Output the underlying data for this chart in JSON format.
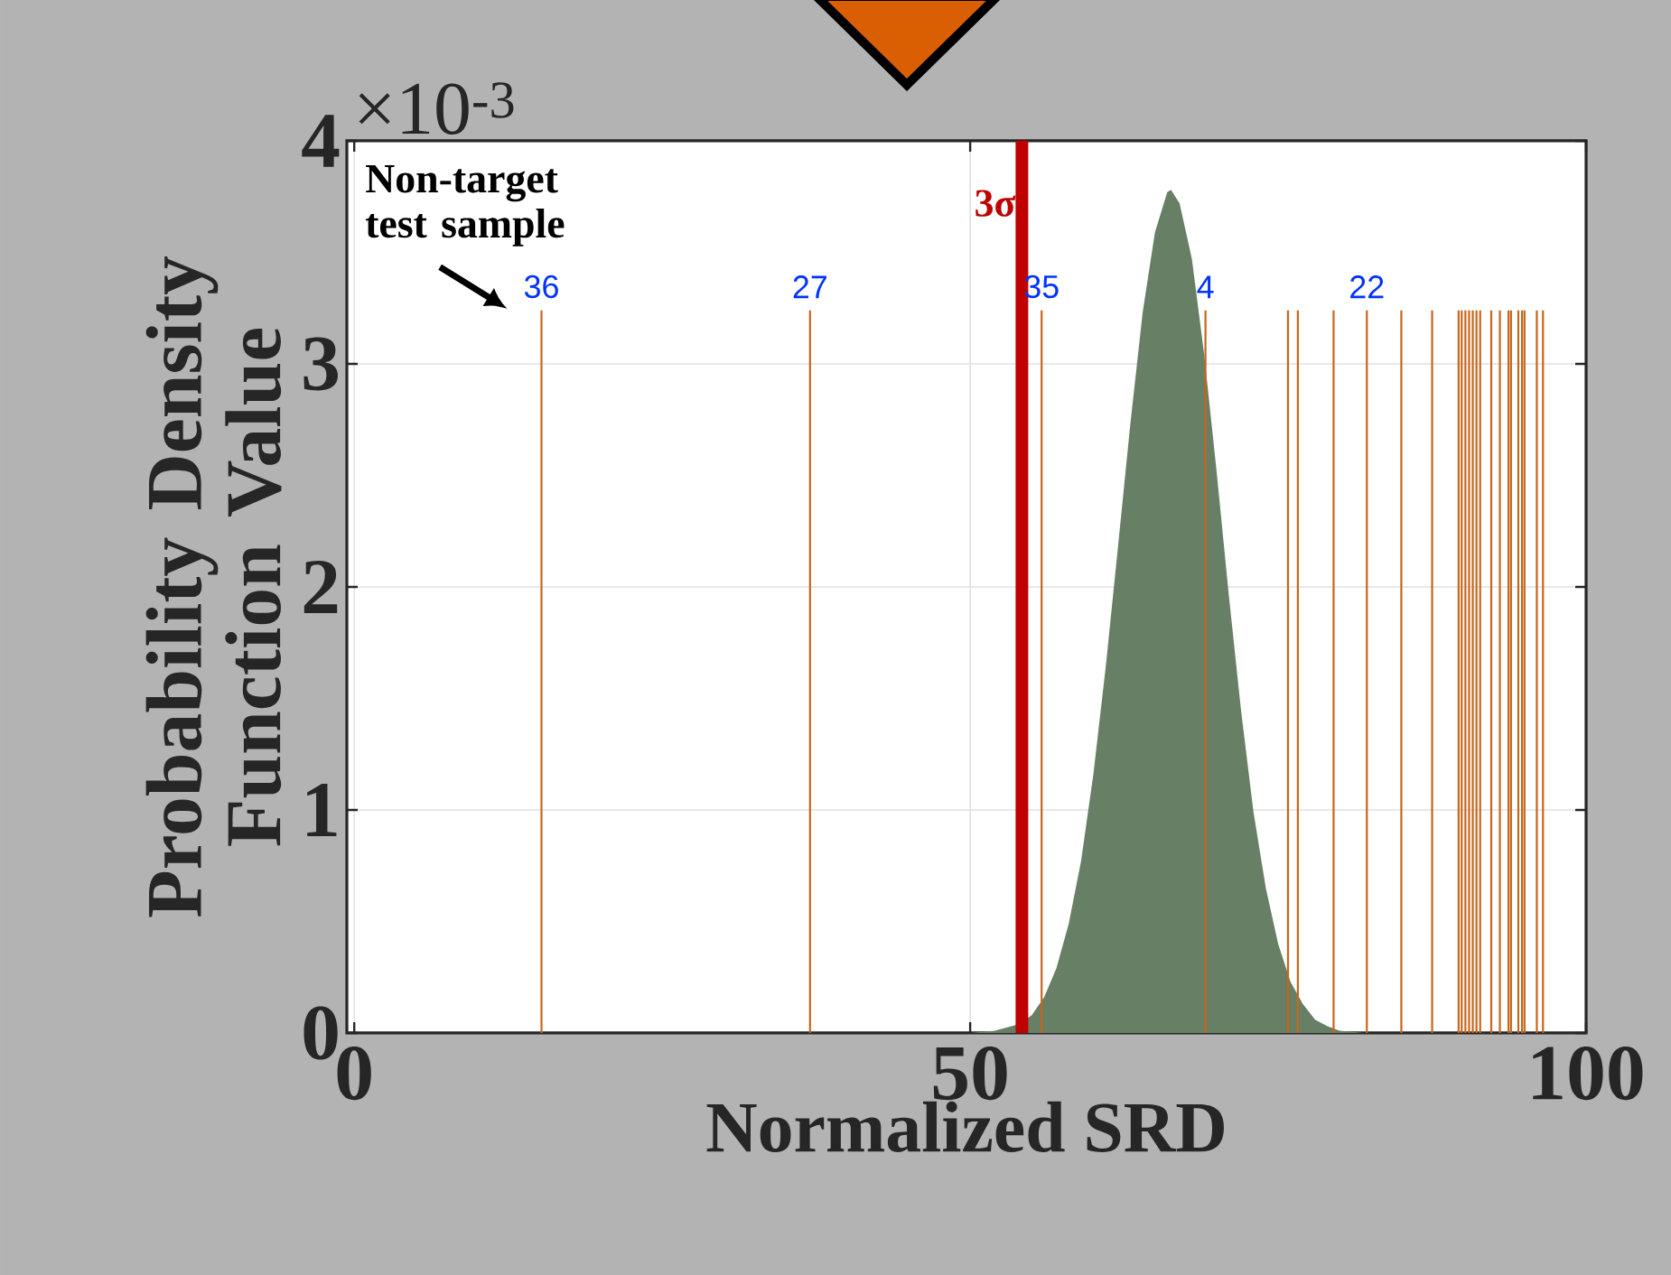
{
  "chart_data": {
    "type": "area",
    "xlabel": "Normalized SRD",
    "ylabel": "Probability Density Function Value",
    "annotations": [
      "×10$^{-3}$",
      "Non-target test sample",
      {
        "text": "36",
        "x": 15.2,
        "y": 3.25
      },
      {
        "text": "27",
        "x": 37.0,
        "y": 3.25
      },
      {
        "text": "35",
        "x": 55.8,
        "y": 3.25
      },
      {
        "text": "4",
        "x": 69.1,
        "y": 3.25
      },
      {
        "text": "22",
        "x": 82.2,
        "y": 3.25
      }
    ],
    "x": [
      50,
      52,
      54,
      55,
      56,
      57,
      58,
      59,
      60,
      61,
      62,
      63,
      64,
      65,
      66,
      66.3,
      67,
      68,
      69,
      70,
      71,
      72,
      73,
      74,
      75,
      76,
      77,
      78,
      79,
      80,
      82,
      84
    ],
    "series": [
      {
        "color": "#677f64",
        "values": [
          0,
          0.01,
          0.04,
          0.08,
          0.16,
          0.29,
          0.49,
          0.77,
          1.16,
          1.64,
          2.18,
          2.73,
          3.23,
          3.59,
          3.77,
          3.78,
          3.72,
          3.47,
          3.04,
          2.52,
          1.96,
          1.44,
          0.99,
          0.65,
          0.4,
          0.23,
          0.13,
          0.06,
          0.03,
          0.01,
          0,
          0
        ]
      }
    ],
    "ref_lines": [
      {
        "axis": "x",
        "value": 54.2,
        "label": "3σ",
        "color": "#c00000"
      },
      {
        "axis": "x",
        "value": 15.2,
        "color": "#c8651b"
      },
      {
        "axis": "x",
        "value": 37.0,
        "color": "#c8651b"
      },
      {
        "axis": "x",
        "value": 55.8,
        "color": "#c8651b"
      },
      {
        "axis": "x",
        "value": 69.1,
        "color": "#c8651b"
      },
      {
        "axis": "x",
        "value": 75.8,
        "color": "#c8651b"
      },
      {
        "axis": "x",
        "value": 76.6,
        "color": "#c8651b"
      },
      {
        "axis": "x",
        "value": 79.5,
        "color": "#c8651b"
      },
      {
        "axis": "x",
        "value": 82.2,
        "color": "#c8651b"
      },
      {
        "axis": "x",
        "value": 85.0,
        "color": "#c8651b"
      },
      {
        "axis": "x",
        "value": 87.5,
        "color": "#c8651b"
      },
      {
        "axis": "x",
        "value": 89.65,
        "color": "#c8651b"
      },
      {
        "axis": "x",
        "value": 89.9,
        "color": "#c8651b"
      },
      {
        "axis": "x",
        "value": 90.2,
        "color": "#c8651b"
      },
      {
        "axis": "x",
        "value": 90.5,
        "color": "#c8651b"
      },
      {
        "axis": "x",
        "value": 90.8,
        "color": "#c8651b"
      },
      {
        "axis": "x",
        "value": 91.1,
        "color": "#c8651b"
      },
      {
        "axis": "x",
        "value": 91.4,
        "color": "#c8651b"
      },
      {
        "axis": "x",
        "value": 92.3,
        "color": "#c8651b"
      },
      {
        "axis": "x",
        "value": 93.0,
        "color": "#c8651b"
      },
      {
        "axis": "x",
        "value": 93.7,
        "color": "#c8651b"
      },
      {
        "axis": "x",
        "value": 93.9,
        "color": "#c8651b"
      },
      {
        "axis": "x",
        "value": 94.5,
        "color": "#c8651b"
      },
      {
        "axis": "x",
        "value": 94.8,
        "color": "#c8651b"
      },
      {
        "axis": "x",
        "value": 95.0,
        "color": "#c8651b"
      },
      {
        "axis": "x",
        "value": 96.0,
        "color": "#c8651b"
      },
      {
        "axis": "x",
        "value": 96.5,
        "color": "#c8651b"
      }
    ],
    "xlim": [
      -0.6,
      100
    ],
    "ylim": [
      0,
      4
    ],
    "xticks": [
      0,
      50,
      100
    ],
    "yticks": [
      0,
      1,
      2,
      3,
      4
    ],
    "grid": true
  }
}
